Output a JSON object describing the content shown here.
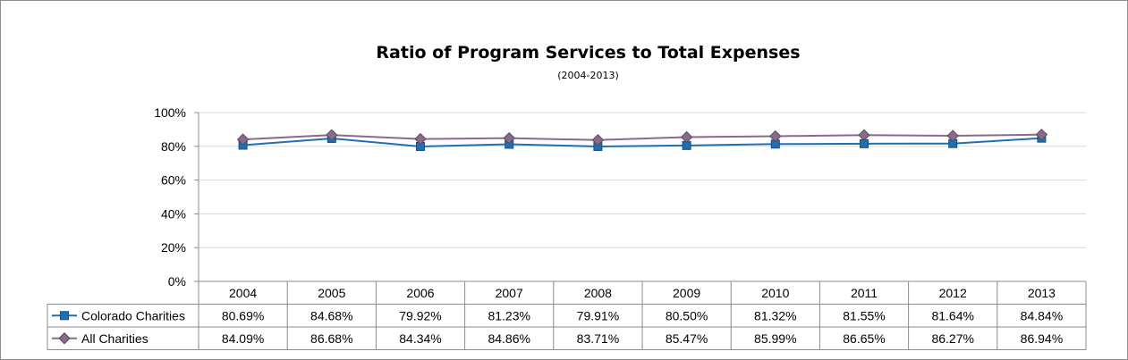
{
  "chart_data": {
    "type": "line",
    "title": "Ratio of Program Services to Total Expenses",
    "subtitle": "(2004-2013)",
    "categories": [
      "2004",
      "2005",
      "2006",
      "2007",
      "2008",
      "2009",
      "2010",
      "2011",
      "2012",
      "2013"
    ],
    "y_ticks": [
      "0%",
      "20%",
      "40%",
      "60%",
      "80%",
      "100%"
    ],
    "ylim": [
      0,
      100
    ],
    "grid": true,
    "legend": "data-table",
    "series": [
      {
        "name": "Colorado Charities",
        "values": [
          80.69,
          84.68,
          79.92,
          81.23,
          79.91,
          80.5,
          81.32,
          81.55,
          81.64,
          84.84
        ],
        "labels": [
          "80.69%",
          "84.68%",
          "79.92%",
          "81.23%",
          "79.91%",
          "80.50%",
          "81.32%",
          "81.55%",
          "81.64%",
          "84.84%"
        ],
        "color": "#1f6fb5",
        "marker": "square"
      },
      {
        "name": "All Charities",
        "values": [
          84.09,
          86.68,
          84.34,
          84.86,
          83.71,
          85.47,
          85.99,
          86.65,
          86.27,
          86.94
        ],
        "labels": [
          "84.09%",
          "86.68%",
          "84.34%",
          "84.86%",
          "83.71%",
          "85.47%",
          "85.99%",
          "86.65%",
          "86.27%",
          "86.94%"
        ],
        "color": "#8a6a8a",
        "marker": "diamond"
      }
    ]
  }
}
